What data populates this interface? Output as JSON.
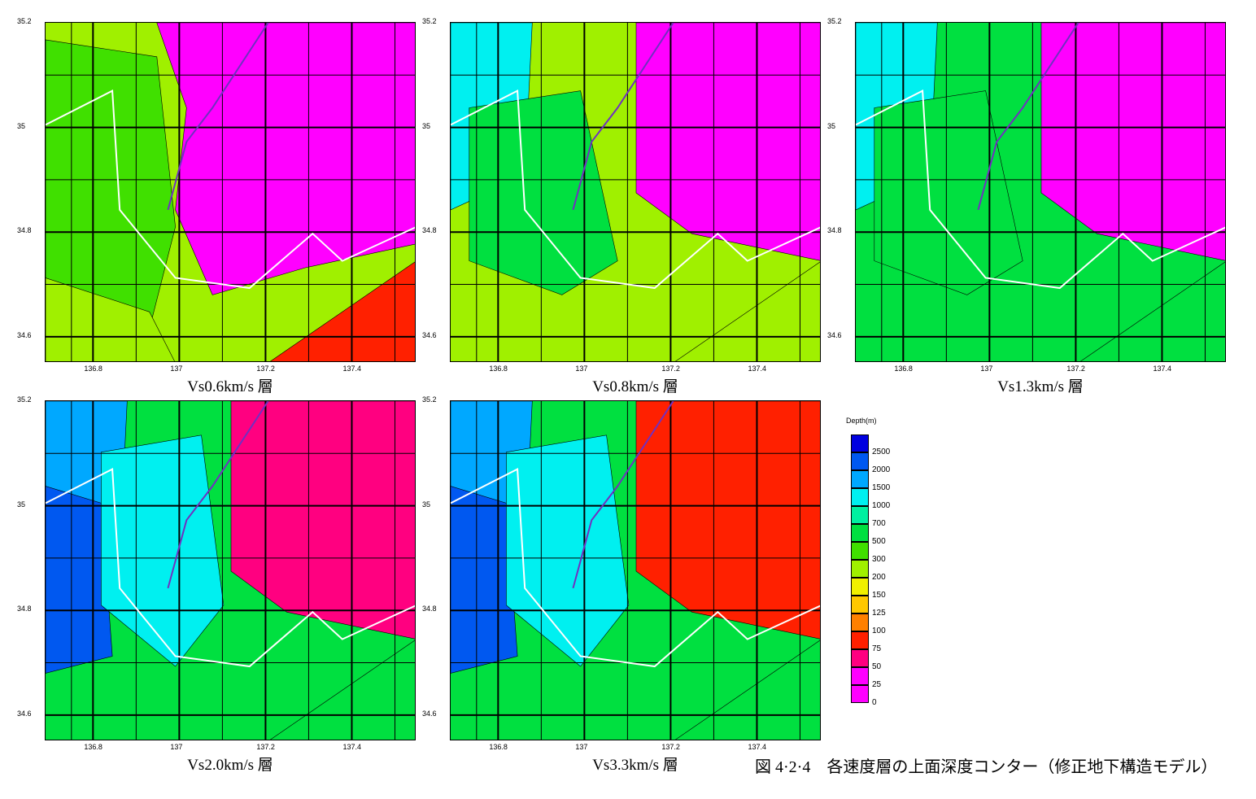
{
  "figure": {
    "caption": "図 4·2·4　各速度層の上面深度コンター（修正地下構造モデル）"
  },
  "axes": {
    "x_ticks": [
      "136.8",
      "137",
      "137.2",
      "137.4"
    ],
    "x_tick_values": [
      136.8,
      137.0,
      137.2,
      137.4
    ],
    "y_ticks": [
      "35.2",
      "35",
      "34.8",
      "34.6"
    ],
    "y_tick_values": [
      35.2,
      35.0,
      34.8,
      34.6
    ],
    "xlim": [
      136.69,
      137.55
    ],
    "ylim": [
      34.55,
      35.2
    ],
    "grid_x": [
      136.75,
      136.8,
      136.9,
      137.0,
      137.1,
      137.2,
      137.3,
      137.4,
      137.5
    ],
    "grid_y": [
      35.1,
      35.0,
      34.9,
      34.8,
      34.7,
      34.6
    ]
  },
  "legend": {
    "title": "Depth(m)",
    "levels": [
      {
        "label": "2500",
        "color": "#0000e0"
      },
      {
        "label": "2000",
        "color": "#0058f0"
      },
      {
        "label": "1500",
        "color": "#00a8ff"
      },
      {
        "label": "1000",
        "color": "#00f0f0"
      },
      {
        "label": "700",
        "color": "#00f0a0"
      },
      {
        "label": "500",
        "color": "#00e040"
      },
      {
        "label": "300",
        "color": "#40e000"
      },
      {
        "label": "200",
        "color": "#a0f000"
      },
      {
        "label": "150",
        "color": "#f0f000"
      },
      {
        "label": "125",
        "color": "#ffc800"
      },
      {
        "label": "100",
        "color": "#ff8000"
      },
      {
        "label": "75",
        "color": "#ff2000"
      },
      {
        "label": "50",
        "color": "#ff0080"
      },
      {
        "label": "25",
        "color": "#ff00ff"
      },
      {
        "label": "0",
        "color": "#ff00ff"
      }
    ]
  },
  "chart_data": [
    {
      "type": "heatmap",
      "title": "Vs0.6km/s 層",
      "xlim": [
        136.69,
        137.55
      ],
      "ylim": [
        34.55,
        35.2
      ],
      "depth_unit": "m",
      "regions": [
        {
          "depth_level": "300",
          "area": "west"
        },
        {
          "depth_level": "0",
          "area": "north and east"
        },
        {
          "depth_level": "75",
          "area": "south-east"
        },
        {
          "depth_level": "200",
          "area": "south-west"
        }
      ]
    },
    {
      "type": "heatmap",
      "title": "Vs0.8km/s 層",
      "xlim": [
        136.69,
        137.55
      ],
      "ylim": [
        34.55,
        35.2
      ],
      "depth_unit": "m",
      "regions": [
        {
          "depth_level": "1000",
          "area": "north-west"
        },
        {
          "depth_level": "500",
          "area": "central west"
        },
        {
          "depth_level": "0",
          "area": "north-east"
        },
        {
          "depth_level": "200",
          "area": "south-east"
        }
      ]
    },
    {
      "type": "heatmap",
      "title": "Vs1.3km/s 層",
      "xlim": [
        136.69,
        137.55
      ],
      "ylim": [
        34.55,
        35.2
      ],
      "depth_unit": "m",
      "regions": [
        {
          "depth_level": "1000",
          "area": "north-west"
        },
        {
          "depth_level": "500",
          "area": "central west"
        },
        {
          "depth_level": "0",
          "area": "north-east"
        },
        {
          "depth_level": "500",
          "area": "south-east"
        }
      ]
    },
    {
      "type": "heatmap",
      "title": "Vs2.0km/s 層",
      "xlim": [
        136.69,
        137.55
      ],
      "ylim": [
        34.55,
        35.2
      ],
      "depth_unit": "m",
      "regions": [
        {
          "depth_level": "1500",
          "area": "north-west"
        },
        {
          "depth_level": "2000",
          "area": "west"
        },
        {
          "depth_level": "1000",
          "area": "central"
        },
        {
          "depth_level": "50",
          "area": "north-east"
        },
        {
          "depth_level": "500",
          "area": "south-east"
        }
      ]
    },
    {
      "type": "heatmap",
      "title": "Vs3.3km/s 層",
      "xlim": [
        136.69,
        137.55
      ],
      "ylim": [
        34.55,
        35.2
      ],
      "depth_unit": "m",
      "regions": [
        {
          "depth_level": "1500",
          "area": "north-west"
        },
        {
          "depth_level": "2000",
          "area": "west"
        },
        {
          "depth_level": "1000",
          "area": "central"
        },
        {
          "depth_level": "75",
          "area": "north-east"
        },
        {
          "depth_level": "500",
          "area": "south-east"
        }
      ]
    }
  ]
}
